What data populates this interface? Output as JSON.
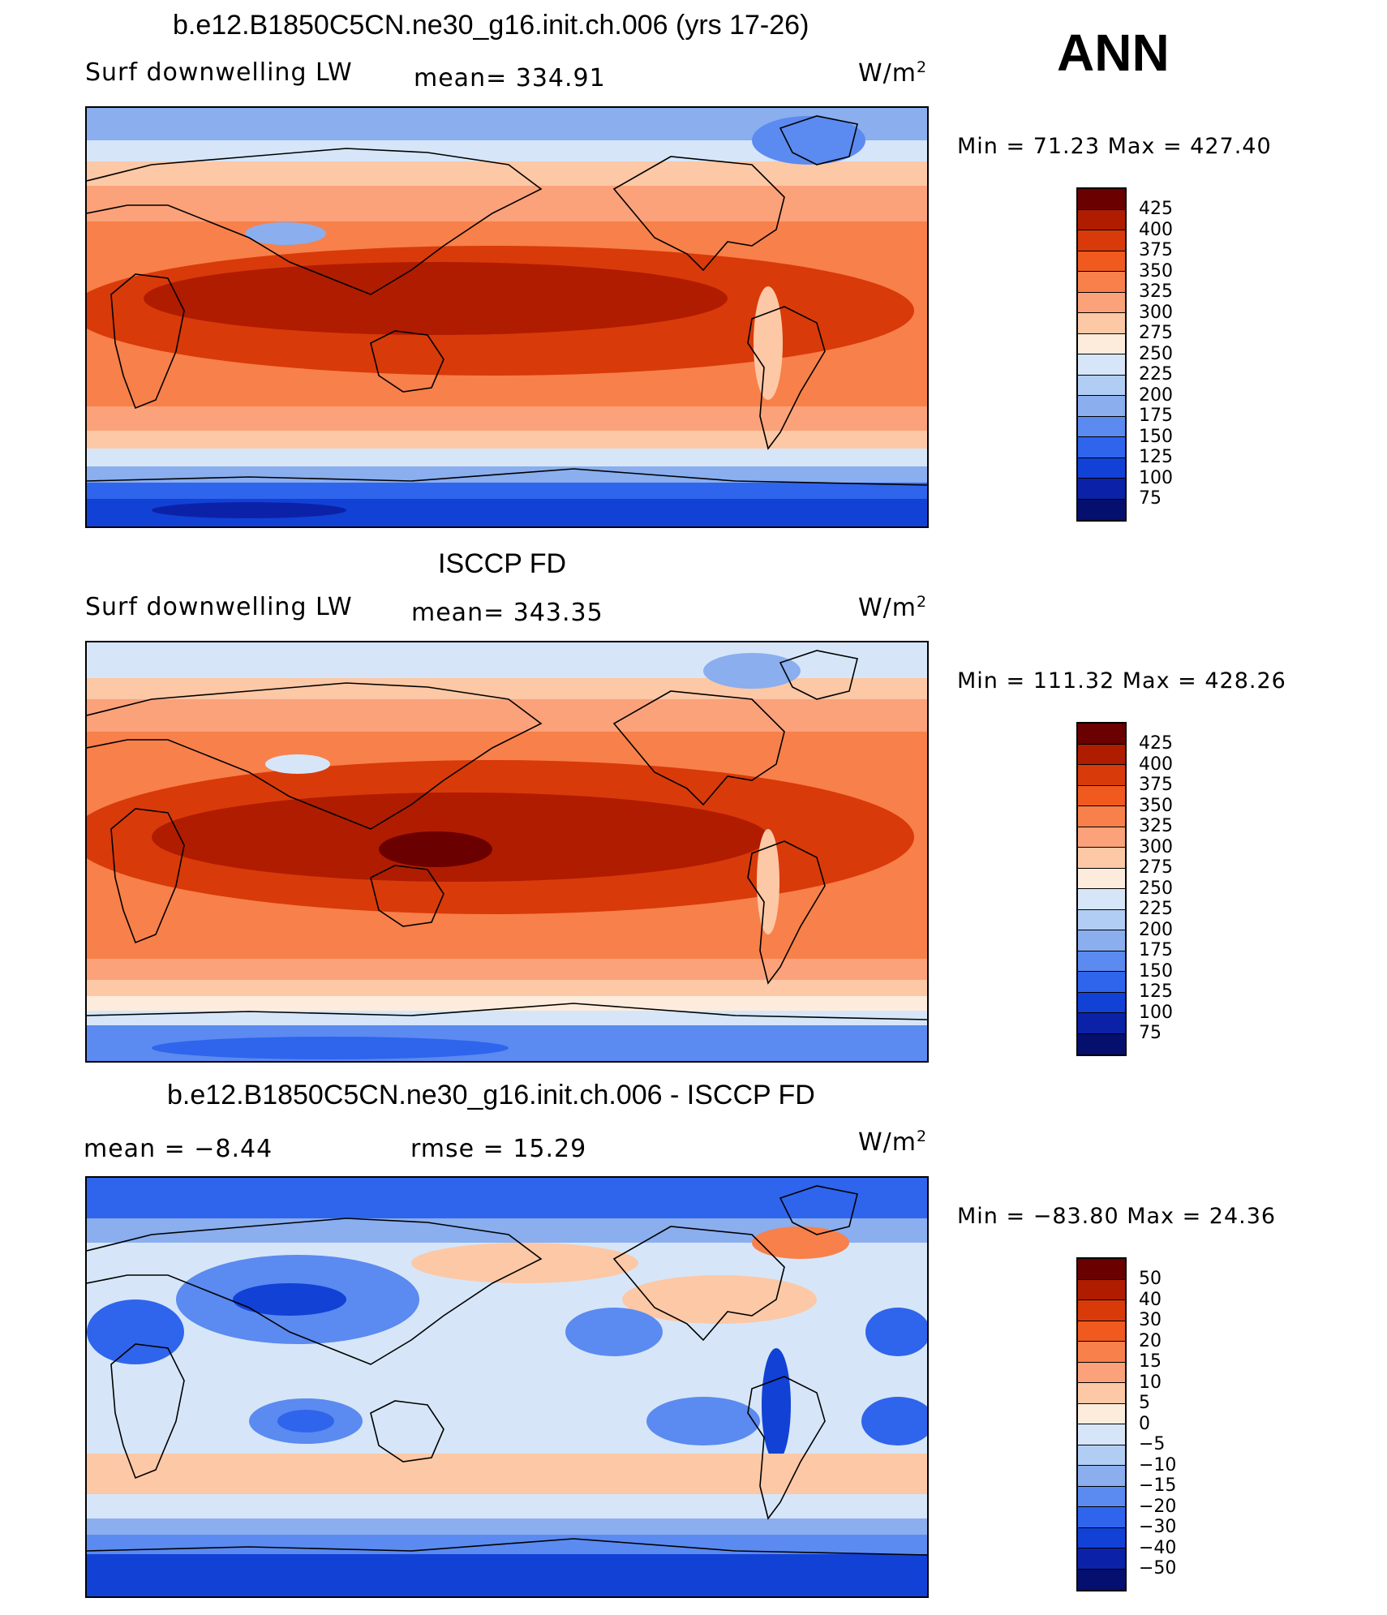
{
  "header": {
    "season": "ANN"
  },
  "panels": [
    {
      "title": "b.e12.B1850C5CN.ne30_g16.init.ch.006 (yrs 17-26)",
      "left_text": "Surf  downwelling LW",
      "center_text": "mean=  334.91",
      "units": "W/m",
      "units_sup": "2",
      "minmax": "Min  =    71.23  Max  =  427.40",
      "levels": [
        "425",
        "400",
        "375",
        "350",
        "325",
        "300",
        "275",
        "250",
        "225",
        "200",
        "175",
        "150",
        "125",
        "100",
        "75"
      ],
      "colors": [
        "#6b0000",
        "#b01c00",
        "#d93a0a",
        "#f05a1e",
        "#f8804a",
        "#fba27a",
        "#fcc8a6",
        "#fdecdc",
        "#d6e6f8",
        "#b2cdf3",
        "#8aaeee",
        "#5b8af0",
        "#2f64ec",
        "#1241d6",
        "#0b22a8",
        "#050f6e"
      ]
    },
    {
      "title": "ISCCP FD",
      "left_text": "Surf  downwelling LW",
      "center_text": "mean=  343.35",
      "units": "W/m",
      "units_sup": "2",
      "minmax": "Min  =  111.32  Max  =  428.26",
      "levels": [
        "425",
        "400",
        "375",
        "350",
        "325",
        "300",
        "275",
        "250",
        "225",
        "200",
        "175",
        "150",
        "125",
        "100",
        "75"
      ],
      "colors": [
        "#6b0000",
        "#b01c00",
        "#d93a0a",
        "#f05a1e",
        "#f8804a",
        "#fba27a",
        "#fcc8a6",
        "#fdecdc",
        "#d6e6f8",
        "#b2cdf3",
        "#8aaeee",
        "#5b8af0",
        "#2f64ec",
        "#1241d6",
        "#0b22a8",
        "#050f6e"
      ]
    },
    {
      "title": "b.e12.B1850C5CN.ne30_g16.init.ch.006 - ISCCP FD",
      "left_text": "mean  =    −8.44",
      "center_text": "rmse  =    15.29",
      "units": "W/m",
      "units_sup": "2",
      "minmax": "Min  =  −83.80  Max  =    24.36",
      "levels": [
        "50",
        "40",
        "30",
        "20",
        "15",
        "10",
        "5",
        "0",
        "−5",
        "−10",
        "−15",
        "−20",
        "−30",
        "−40",
        "−50"
      ],
      "colors": [
        "#6b0000",
        "#b01c00",
        "#d93a0a",
        "#f05a1e",
        "#f8804a",
        "#fba27a",
        "#fcc8a6",
        "#fdecdc",
        "#d6e6f8",
        "#b2cdf3",
        "#8aaeee",
        "#5b8af0",
        "#2f64ec",
        "#1241d6",
        "#0b22a8",
        "#050f6e"
      ]
    }
  ]
}
